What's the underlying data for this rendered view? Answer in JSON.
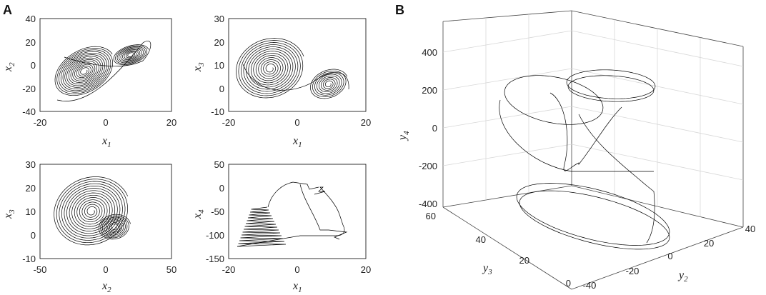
{
  "panels": {
    "A": {
      "letter": "A",
      "subplots": [
        {
          "xlabel": "x",
          "xsub": "1",
          "ylabel": "x",
          "ysub": "2",
          "xticks": [
            "-20",
            "0",
            "20"
          ],
          "yticks": [
            "40",
            "20",
            "0",
            "-20",
            "-40"
          ]
        },
        {
          "xlabel": "x",
          "xsub": "1",
          "ylabel": "x",
          "ysub": "3",
          "xticks": [
            "-20",
            "0",
            "20"
          ],
          "yticks": [
            "30",
            "20",
            "10",
            "0",
            "-10"
          ]
        },
        {
          "xlabel": "x",
          "xsub": "2",
          "ylabel": "x",
          "ysub": "3",
          "xticks": [
            "-50",
            "0",
            "50"
          ],
          "yticks": [
            "30",
            "20",
            "10",
            "0",
            "-10"
          ]
        },
        {
          "xlabel": "x",
          "xsub": "1",
          "ylabel": "x",
          "ysub": "4",
          "xticks": [
            "-20",
            "0",
            "20"
          ],
          "yticks": [
            "50",
            "0",
            "-50",
            "-100",
            "-150"
          ]
        }
      ]
    },
    "B": {
      "letter": "B",
      "zlabel": "y",
      "zsub": "4",
      "xlabel": "y",
      "xsub": "3",
      "ylabel": "y",
      "ysub": "2",
      "zticks": [
        "400",
        "200",
        "0",
        "-200",
        "-400"
      ],
      "y3ticks": [
        "60",
        "40",
        "20",
        "0"
      ],
      "y2ticks": [
        "-40",
        "-20",
        "0",
        "20",
        "40"
      ]
    }
  },
  "chart_data": [
    {
      "type": "line",
      "title": "",
      "xlabel": "x1",
      "ylabel": "x2",
      "xlim": [
        -20,
        20
      ],
      "ylim": [
        -40,
        40
      ],
      "series": [
        {
          "description_points": [
            [
              -7,
              -7
            ],
            [
              6,
              7
            ]
          ],
          "x": [
            -14,
            -10,
            -6,
            -2,
            2,
            6,
            9,
            10,
            6,
            2,
            -2,
            -6,
            -10,
            -13
          ],
          "y": [
            -20,
            -5,
            10,
            8,
            0,
            5,
            14,
            5,
            -2,
            0,
            -8,
            -20,
            -28,
            -20
          ]
        }
      ]
    },
    {
      "type": "line",
      "xlabel": "x1",
      "ylabel": "x3",
      "xlim": [
        -20,
        20
      ],
      "ylim": [
        -10,
        30
      ],
      "series": [
        {
          "x": [
            -15,
            -12,
            -8,
            -4,
            0,
            4,
            8,
            10,
            8,
            4,
            0,
            -4,
            -8,
            -12
          ],
          "y": [
            12,
            20,
            22,
            18,
            10,
            6,
            2,
            5,
            8,
            4,
            2,
            0,
            2,
            6
          ]
        }
      ]
    },
    {
      "type": "line",
      "xlabel": "x2",
      "ylabel": "x3",
      "xlim": [
        -50,
        50
      ],
      "ylim": [
        -10,
        30
      ],
      "series": [
        {
          "x": [
            -30,
            -20,
            -10,
            0,
            10,
            15,
            10,
            5,
            0,
            -10,
            -20,
            -28
          ],
          "y": [
            8,
            18,
            22,
            18,
            10,
            6,
            2,
            2,
            4,
            0,
            2,
            6
          ]
        }
      ]
    },
    {
      "type": "line",
      "xlabel": "x1",
      "ylabel": "x4",
      "xlim": [
        -20,
        20
      ],
      "ylim": [
        -150,
        50
      ],
      "series": [
        {
          "x": [
            -18,
            -10,
            -5,
            -2,
            0,
            2,
            5,
            7,
            9,
            12
          ],
          "y": [
            -85,
            -75,
            -60,
            -40,
            -5,
            5,
            0,
            -60,
            -90,
            -95
          ]
        }
      ]
    },
    {
      "type": "line",
      "dimensions": 3,
      "xlabel": "y3",
      "ylabel": "y2",
      "zlabel": "y4",
      "y3lim": [
        0,
        60
      ],
      "y2lim": [
        -40,
        40
      ],
      "zlim": [
        -400,
        400
      ],
      "series": [
        {
          "y3": [
            10,
            20,
            30,
            40,
            35,
            25,
            15,
            10
          ],
          "y2": [
            -10,
            0,
            10,
            20,
            10,
            0,
            -10,
            -20
          ],
          "y4": [
            -300,
            -200,
            -100,
            200,
            250,
            100,
            0,
            -280
          ]
        }
      ]
    }
  ]
}
